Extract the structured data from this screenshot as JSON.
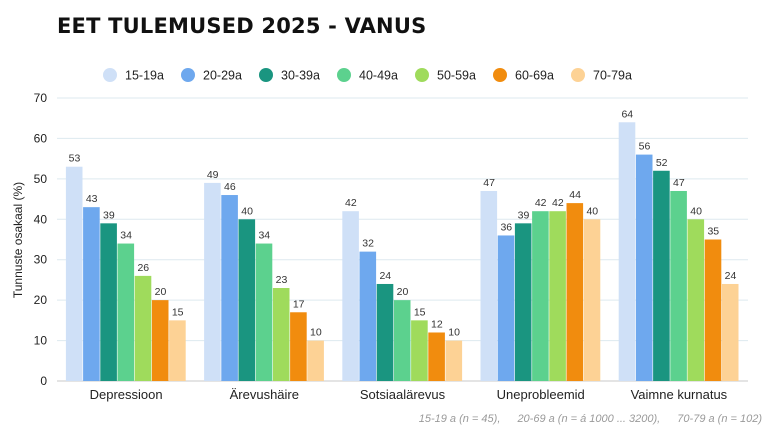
{
  "title": "EET TULEMUSED 2025 - VANUS",
  "footnote": [
    "15-19 a (n = 45),",
    "20-69 a (n = á 1000 ... 3200),",
    "70-79 a (n = 102)"
  ],
  "chart_data": {
    "type": "bar",
    "title": "EET TULEMUSED 2025 - VANUS",
    "xlabel": "",
    "ylabel": "Tunnuste osakaal (%)",
    "ylim": [
      0,
      70
    ],
    "yticks": [
      0,
      10,
      20,
      30,
      40,
      50,
      60,
      70
    ],
    "grid": true,
    "legend_position": "top",
    "categories": [
      "Depressioon",
      "Ärevushäire",
      "Sotsiaalärevus",
      "Uneprobleemid",
      "Vaimne kurnatus"
    ],
    "series": [
      {
        "name": "15-19a",
        "color": "#cfe0f7",
        "values": [
          53,
          49,
          42,
          47,
          64
        ]
      },
      {
        "name": "20-29a",
        "color": "#6ea8ee",
        "values": [
          43,
          46,
          32,
          36,
          56
        ]
      },
      {
        "name": "30-39a",
        "color": "#1a9580",
        "values": [
          39,
          40,
          24,
          39,
          52
        ]
      },
      {
        "name": "40-49a",
        "color": "#5cd18e",
        "values": [
          34,
          34,
          20,
          42,
          47
        ]
      },
      {
        "name": "50-59a",
        "color": "#9fdb5c",
        "values": [
          26,
          23,
          15,
          42,
          40
        ]
      },
      {
        "name": "60-69a",
        "color": "#f18c0e",
        "values": [
          20,
          17,
          12,
          44,
          35
        ]
      },
      {
        "name": "70-79a",
        "color": "#fdd295",
        "values": [
          15,
          10,
          10,
          40,
          24
        ]
      }
    ]
  }
}
